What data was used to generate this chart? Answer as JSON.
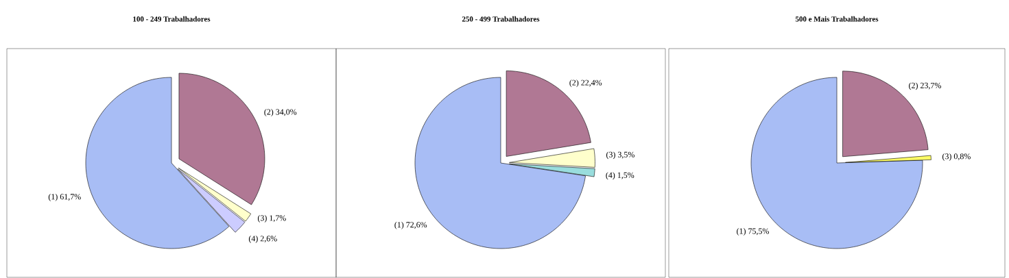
{
  "chart_data": [
    {
      "type": "pie",
      "title": "100 - 249 Trabalhadores",
      "categories": [
        "(1)",
        "(2)",
        "(3)",
        "(4)"
      ],
      "values": [
        61.7,
        34.0,
        1.7,
        2.6
      ],
      "value_labels": [
        "61,7%",
        "34,0%",
        "1,7%",
        "2,6%"
      ],
      "colors": [
        "#a8bdf5",
        "#b07894",
        "#ffffcc",
        "#ccccff"
      ]
    },
    {
      "type": "pie",
      "title": "250 - 499 Trabalhadores",
      "categories": [
        "(1)",
        "(2)",
        "(3)",
        "(4)"
      ],
      "values": [
        72.6,
        22.4,
        3.5,
        1.5
      ],
      "value_labels": [
        "72,6%",
        "22,4%",
        "3,5%",
        "1,5%"
      ],
      "colors": [
        "#a8bdf5",
        "#b07894",
        "#ffffcc",
        "#99dddd"
      ]
    },
    {
      "type": "pie",
      "title": "500 e Mais Trabalhadores",
      "categories": [
        "(1)",
        "(2)",
        "(3)"
      ],
      "values": [
        75.5,
        23.7,
        0.8
      ],
      "value_labels": [
        "75,5%",
        "23,7%",
        "0,8%"
      ],
      "colors": [
        "#a8bdf5",
        "#b07894",
        "#ffff66"
      ]
    }
  ]
}
